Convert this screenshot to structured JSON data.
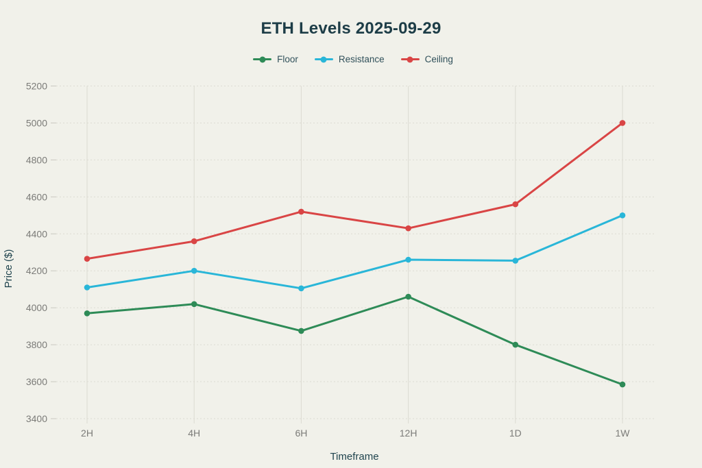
{
  "chart_data": {
    "type": "line",
    "title": "ETH Levels 2025-09-29",
    "xlabel": "Timeframe",
    "ylabel": "Price ($)",
    "categories": [
      "2H",
      "4H",
      "6H",
      "12H",
      "1D",
      "1W"
    ],
    "series": [
      {
        "name": "Floor",
        "color": "#2e8b57",
        "values": [
          3970,
          4020,
          3875,
          4060,
          3800,
          3585
        ]
      },
      {
        "name": "Resistance",
        "color": "#29b6d8",
        "values": [
          4110,
          4200,
          4105,
          4260,
          4255,
          4500
        ]
      },
      {
        "name": "Ceiling",
        "color": "#d94545",
        "values": [
          4265,
          4360,
          4520,
          4430,
          4560,
          5000
        ]
      }
    ],
    "ylim": [
      3400,
      5200
    ],
    "ytick_step": 200,
    "yticks": [
      3400,
      3600,
      3800,
      4000,
      4200,
      4400,
      4600,
      4800,
      5000,
      5200
    ],
    "grid": true,
    "legend_position": "top-center",
    "marker": "circle",
    "colors": {
      "background": "#f1f1ea",
      "title": "#1d3d47",
      "axis_label": "#21454f",
      "tick_label": "#7b7b78",
      "grid": "#dcdbd2"
    }
  }
}
